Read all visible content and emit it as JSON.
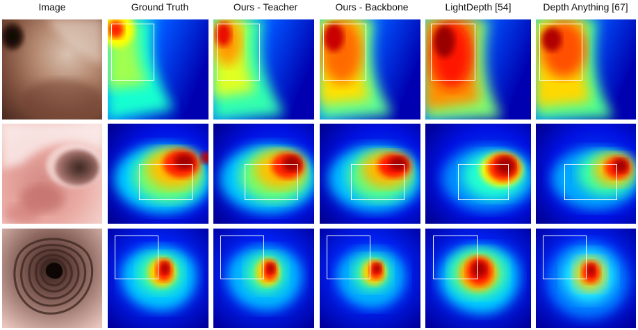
{
  "figure": {
    "column_headers": [
      "Image",
      "Ground Truth",
      "Ours - Teacher",
      "Ours - Backbone",
      "LightDepth [54]",
      "Depth Anything [67]"
    ]
  },
  "rows": [
    {
      "image": "endoscopy-frame-lumen-top-left"
    },
    {
      "image": "endoscopy-frame-lumen-right"
    },
    {
      "image": "endoscopy-frame-lumen-center"
    }
  ],
  "colors": {
    "colormap": [
      "#00007f",
      "#0000ff",
      "#00bfff",
      "#40ff80",
      "#ffff00",
      "#ff7f00",
      "#ff0000",
      "#7f0000"
    ],
    "roi_box": "#ffffff"
  }
}
